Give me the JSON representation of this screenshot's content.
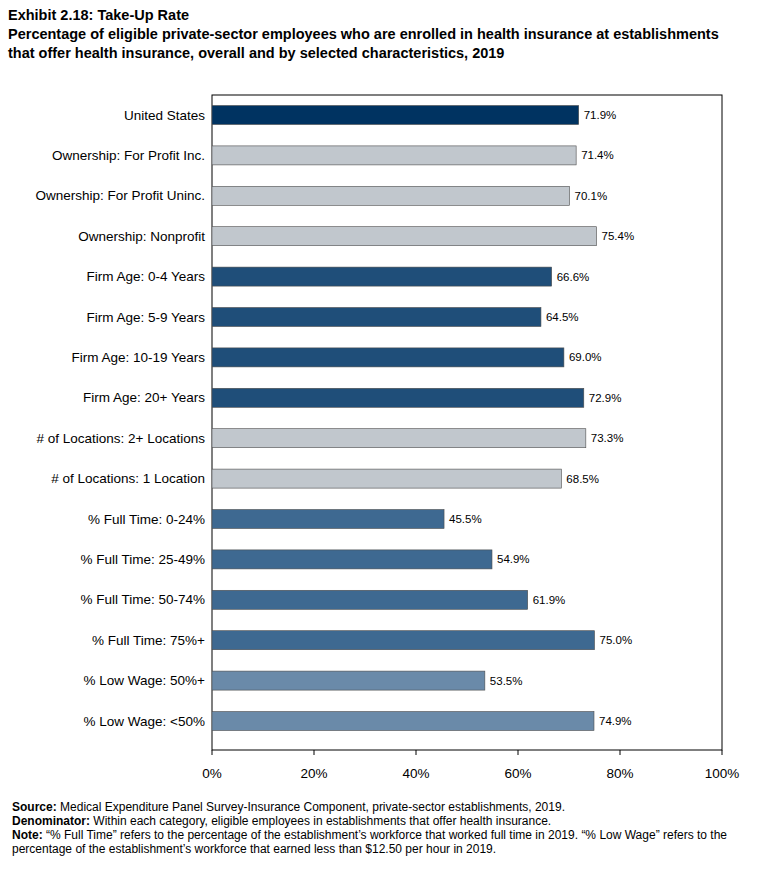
{
  "chart_data": {
    "type": "bar",
    "orientation": "horizontal",
    "title": "Exhibit 2.18: Take-Up Rate",
    "subtitle": "Percentage of eligible private-sector employees who are enrolled in health insurance at establishments that offer health insurance, overall and by selected characteristics, 2019",
    "categories": [
      "United States",
      "Ownership: For Profit Inc.",
      "Ownership: For Profit Uninc.",
      "Ownership: Nonprofit",
      "Firm Age: 0-4 Years",
      "Firm Age: 5-9 Years",
      "Firm Age: 10-19 Years",
      "Firm Age: 20+ Years",
      "# of Locations: 2+ Locations",
      "# of Locations: 1 Location",
      "% Full Time: 0-24%",
      "% Full Time: 25-49%",
      "% Full Time: 50-74%",
      "% Full Time: 75%+",
      "% Low Wage: 50%+",
      "% Low Wage: <50%"
    ],
    "values": [
      71.9,
      71.4,
      70.1,
      75.4,
      66.6,
      64.5,
      69.0,
      72.9,
      73.3,
      68.5,
      45.5,
      54.9,
      61.9,
      75.0,
      53.5,
      74.9
    ],
    "value_labels": [
      "71.9%",
      "71.4%",
      "70.1%",
      "75.4%",
      "66.6%",
      "64.5%",
      "69.0%",
      "72.9%",
      "73.3%",
      "68.5%",
      "45.5%",
      "54.9%",
      "61.9%",
      "75.0%",
      "53.5%",
      "74.9%"
    ],
    "data_labels": true,
    "colors": [
      "#003361",
      "#c1c7cd",
      "#c1c7cd",
      "#c1c7cd",
      "#1f4e79",
      "#1f4e79",
      "#1f4e79",
      "#1f4e79",
      "#c1c7cd",
      "#c1c7cd",
      "#3e6991",
      "#3e6991",
      "#3e6991",
      "#3e6991",
      "#6a8aa9",
      "#6a8aa9"
    ],
    "xlim": [
      0,
      100
    ],
    "xticks": [
      {
        "value": 0,
        "label": "0%"
      },
      {
        "value": 20,
        "label": "20%"
      },
      {
        "value": 40,
        "label": "40%"
      },
      {
        "value": 60,
        "label": "60%"
      },
      {
        "value": 80,
        "label": "80%"
      },
      {
        "value": 100,
        "label": "100%"
      }
    ],
    "grid": false,
    "notes": [
      {
        "label": "Source:",
        "text": "Medical Expenditure Panel Survey-Insurance Component, private-sector establishments, 2019."
      },
      {
        "label": "Denominator:",
        "text": "Within each category, eligible employees in establishments that offer health insurance."
      },
      {
        "label": "Note:",
        "text": "“% Full Time” refers to the percentage of the establishment’s workforce that worked full time in 2019. “% Low Wage” refers to the percentage of the establishment’s workforce that earned less than $12.50 per hour in 2019."
      }
    ]
  }
}
